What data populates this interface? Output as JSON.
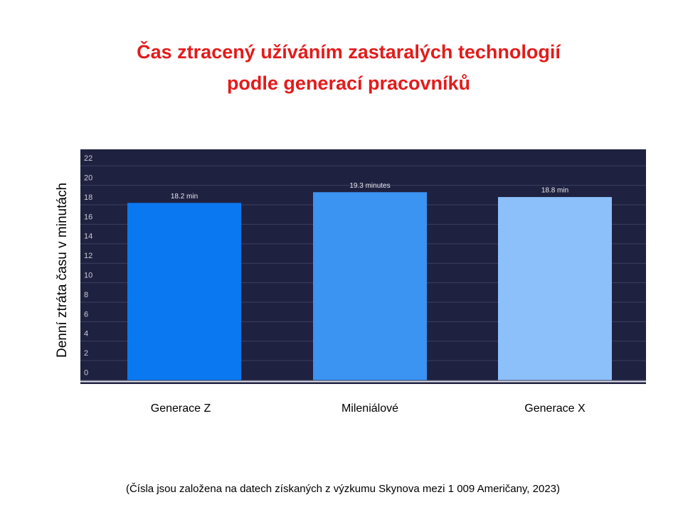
{
  "chart_data": {
    "type": "bar",
    "title": [
      "Čas ztracený užíváním zastaralých technologií",
      "podle generací pracovníků"
    ],
    "y_label": "Denní ztráta času v minutách",
    "categories": [
      "Generace Z",
      "Mileniálové",
      "Generace X"
    ],
    "values": [
      18.2,
      19.3,
      18.8
    ],
    "value_labels": [
      "18.2 min",
      "19.3 minutes",
      "18.8 min"
    ],
    "colors": [
      "#0a78f0",
      "#3b93f2",
      "#8cc0fb"
    ],
    "ylim": [
      -0.4,
      23.7
    ],
    "yticks": [
      0,
      2,
      4,
      6,
      8,
      10,
      12,
      14,
      16,
      18,
      20,
      22
    ],
    "grid": true,
    "note": "(Čísla jsou založena na datech získaných z výzkumu Skynova mezi 1 009 Američany, 2023)"
  }
}
